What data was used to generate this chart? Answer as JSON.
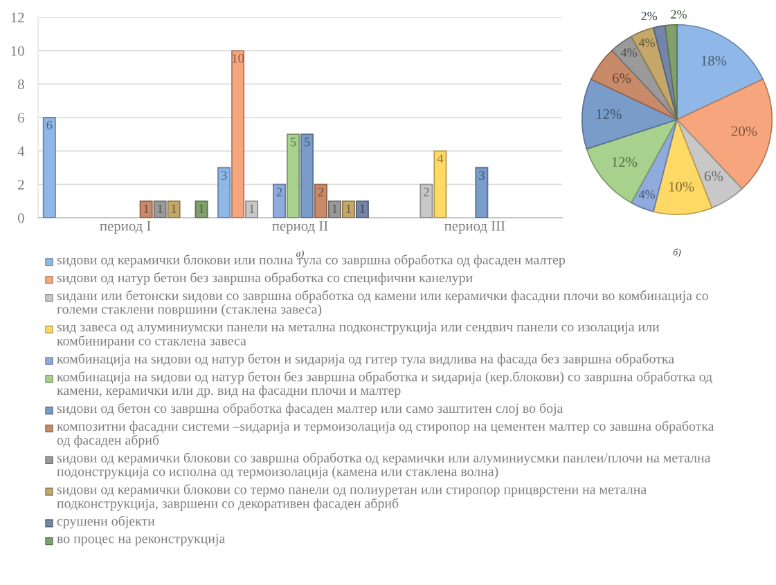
{
  "chart_data": [
    {
      "type": "bar",
      "categories": [
        "период I",
        "период II",
        "период III"
      ],
      "series": [
        {
          "name": "ѕидови од керамички блокови или полна тула со завршна обработка од фасаден малтер",
          "color": "#8fb8e8",
          "values": [
            6,
            3,
            null
          ]
        },
        {
          "name": "ѕидови од натур бетон без завршна обработка со специфични канелури",
          "color": "#f7a57c",
          "values": [
            null,
            10,
            null
          ]
        },
        {
          "name": "ѕидани или бетонски ѕидови со завршна обработка од камени или керамички фасадни плочи во комбинација со големи стаклени површини (стаклена завеса)",
          "color": "#c8c8c8",
          "values": [
            null,
            1,
            2
          ]
        },
        {
          "name": "ѕид завеса од алуминиумски панели на метална подконструкција или сендвич панели со изолација или комбинирани со стаклена завеса",
          "color": "#ffd966",
          "values": [
            null,
            null,
            4
          ]
        },
        {
          "name": "комбинација на ѕидови од натур бетон и ѕидарија од гитер тула видлива на фасада без завршна обработка",
          "color": "#8faadc",
          "values": [
            null,
            2,
            null
          ]
        },
        {
          "name": "комбинација на ѕидови од натур бетон без завршна обработка и ѕидарија (кер.блокови) со завршна обработка од камени, керамички или др. вид на фасадни плочи и малтер",
          "color": "#a9d18e",
          "values": [
            null,
            5,
            null
          ]
        },
        {
          "name": "ѕидови од бетон со завршна обработка фасаден малтер или само заштитен слој во боја",
          "color": "#7a9cc9",
          "values": [
            null,
            5,
            3
          ]
        },
        {
          "name": "композитни фасадни системи –ѕидарија и термоизолација од стиропор на цементен малтер со завшна обработка од фасаден абриб",
          "color": "#c98a6a",
          "values": [
            1,
            2,
            null
          ]
        },
        {
          "name": "ѕидови од керамички блокови со завршна обработка од керамички или алуминиусмки панлеи/плочи на метална подонструкција со исполна од термоизолација (камена или стаклена волна)",
          "color": "#9a9a9a",
          "values": [
            1,
            1,
            null
          ]
        },
        {
          "name": "ѕидови од керамички блокови со термо панели од полиуретан или стиропор прицврстени на метална подконструкција, завршени со декоративен фасаден абриб",
          "color": "#c4a86a",
          "values": [
            1,
            1,
            null
          ]
        },
        {
          "name": "срушени објекти",
          "color": "#7385a9",
          "values": [
            null,
            1,
            null
          ]
        },
        {
          "name": "во процес на реконструкција",
          "color": "#80a06c",
          "values": [
            1,
            null,
            null
          ]
        }
      ],
      "ylim": [
        0,
        12
      ],
      "yticks": [
        0,
        2,
        4,
        6,
        8,
        10,
        12
      ],
      "grid": "y",
      "data_labels": true,
      "legend": "bottom",
      "annotations": [
        "а)"
      ]
    },
    {
      "type": "pie",
      "categories": [
        null,
        null,
        null,
        null,
        null,
        null,
        null,
        null,
        null,
        null,
        null,
        null
      ],
      "values": [
        18,
        20,
        6,
        10,
        4,
        12,
        12,
        6,
        4,
        4,
        2,
        2
      ],
      "colors": [
        "#8fb8e8",
        "#f7a57c",
        "#c8c8c8",
        "#ffd966",
        "#8faadc",
        "#a9d18e",
        "#7a9cc9",
        "#c98a6a",
        "#9a9a9a",
        "#c4a86a",
        "#7385a9",
        "#80a06c"
      ],
      "value_labels": [
        "18%",
        "20%",
        "6%",
        "10%",
        "4%",
        "12%",
        "12%",
        "6%",
        "4%",
        "4%",
        "2%",
        "2%"
      ],
      "annotations": [
        "б)"
      ]
    }
  ]
}
